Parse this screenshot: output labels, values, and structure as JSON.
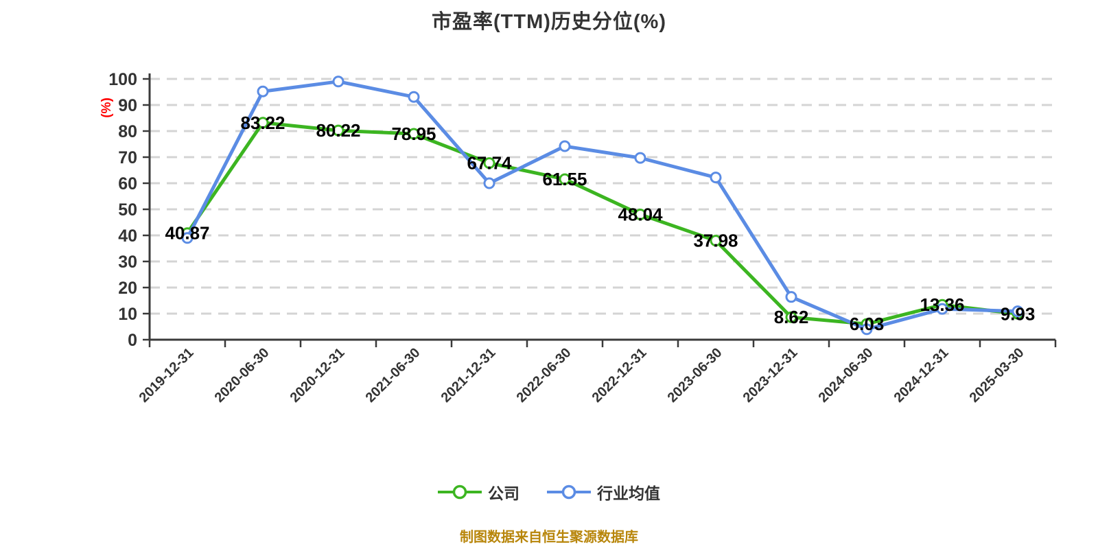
{
  "title": "市盈率(TTM)历史分位(%)",
  "caption": "制图数据来自恒生聚源数据库",
  "chart_data": {
    "type": "line",
    "title": "市盈率(TTM)历史分位(%)",
    "ylabel": "(%)",
    "xlabel": "",
    "ylim": [
      0,
      100
    ],
    "yticks": [
      0,
      10,
      20,
      30,
      40,
      50,
      60,
      70,
      80,
      90,
      100
    ],
    "grid": "dashed-horizontal",
    "legend_position": "bottom",
    "categories": [
      "2019-12-31",
      "2020-06-30",
      "2020-12-31",
      "2021-06-30",
      "2021-12-31",
      "2022-06-30",
      "2022-12-31",
      "2023-06-30",
      "2023-12-31",
      "2024-06-30",
      "2024-12-31",
      "2025-03-30"
    ],
    "series": [
      {
        "name": "公司",
        "color": "#3cb521",
        "show_labels": true,
        "values": [
          40.87,
          83.22,
          80.22,
          78.95,
          67.74,
          61.55,
          48.04,
          37.98,
          8.62,
          6.03,
          13.36,
          9.93
        ]
      },
      {
        "name": "行业均值",
        "color": "#5b8ce4",
        "show_labels": false,
        "values": [
          39.0,
          95.2,
          99.0,
          93.1,
          60.0,
          74.2,
          69.7,
          62.2,
          16.4,
          4.0,
          11.8,
          10.9
        ]
      }
    ],
    "colors": {
      "axis": "#3a3a3a",
      "gridline": "#d4d4d4",
      "tick_label": "#333333",
      "data_label": "#000000",
      "unit_label": "#ff0000",
      "caption": "#b8860b",
      "background": "#ffffff"
    }
  }
}
